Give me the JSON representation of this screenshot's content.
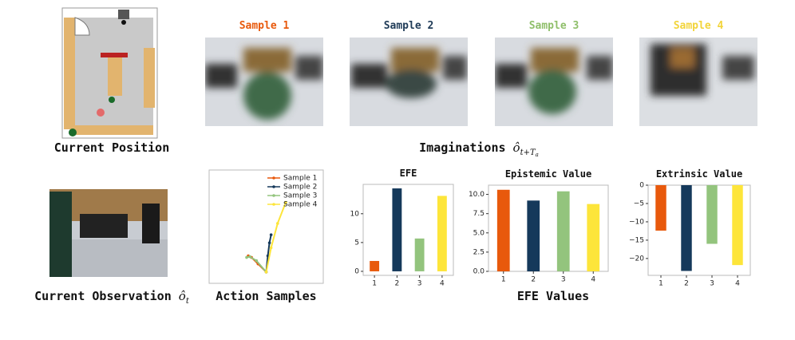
{
  "labels": {
    "current_position": "Current Position",
    "imaginations": "Imaginations",
    "imaginations_math": "ô",
    "imaginations_sub": "t+T",
    "imaginations_subsub": "a",
    "current_observation": "Current Observation",
    "observation_math": "ô",
    "observation_sub": "t",
    "efe_values": "EFE Values"
  },
  "samples": [
    {
      "name": "Sample 1",
      "color": "#e8590c"
    },
    {
      "name": "Sample 2",
      "color": "#1f3b57"
    },
    {
      "name": "Sample 3",
      "color": "#8fbf6a"
    },
    {
      "name": "Sample 4",
      "color": "#f2d43a"
    }
  ],
  "chart_data": [
    {
      "type": "line",
      "title": "Action Samples",
      "legend": "upper right",
      "xlim": [
        -3.5,
        3.5
      ],
      "ylim": [
        -0.7,
        6.3
      ],
      "series": [
        {
          "name": "Sample 1",
          "color": "#e8590c",
          "x": [
            0,
            -0.5,
            -0.9,
            -1.1
          ],
          "values": [
            0,
            0.5,
            0.9,
            1.0
          ]
        },
        {
          "name": "Sample 2",
          "color": "#15395b",
          "x": [
            0,
            0.1,
            0.2,
            0.3
          ],
          "values": [
            0,
            1.0,
            1.8,
            2.3
          ]
        },
        {
          "name": "Sample 3",
          "color": "#93c47d",
          "x": [
            0,
            -0.6,
            -1.0,
            -1.2
          ],
          "values": [
            0,
            0.7,
            0.95,
            0.9
          ]
        },
        {
          "name": "Sample 4",
          "color": "#fde53a",
          "x": [
            0,
            0.3,
            0.7,
            1.2
          ],
          "values": [
            0,
            1.5,
            3.0,
            4.3
          ]
        }
      ]
    },
    {
      "type": "bar",
      "title": "EFE",
      "categories": [
        "1",
        "2",
        "3",
        "4"
      ],
      "values": [
        1.8,
        14.4,
        5.7,
        13.1
      ],
      "colors": [
        "#e8590c",
        "#15395b",
        "#93c47d",
        "#fde53a"
      ],
      "ylim": [
        -0.7,
        15.1
      ],
      "yticks": [
        0,
        5,
        10
      ]
    },
    {
      "type": "bar",
      "title": "Epistemic Value",
      "categories": [
        "1",
        "2",
        "3",
        "4"
      ],
      "values": [
        10.6,
        9.2,
        10.4,
        8.75
      ],
      "colors": [
        "#e8590c",
        "#15395b",
        "#93c47d",
        "#fde53a"
      ],
      "ylim": [
        0,
        11.2
      ],
      "yticks": [
        {
          "value": 0,
          "label": "0.0"
        },
        {
          "value": 2.5,
          "label": "2.5"
        },
        {
          "value": 5,
          "label": "5.0"
        },
        {
          "value": 7.5,
          "label": "7.5"
        },
        {
          "value": 10,
          "label": "10.0"
        }
      ]
    },
    {
      "type": "bar",
      "title": "Extrinsic Value",
      "categories": [
        "1",
        "2",
        "3",
        "4"
      ],
      "values": [
        -12.4,
        -23.4,
        -16,
        -21.8
      ],
      "colors": [
        "#e8590c",
        "#15395b",
        "#93c47d",
        "#fde53a"
      ],
      "ylim": [
        -24.6,
        0
      ],
      "yticks": [
        0,
        {
          "value": -5,
          "label": "−5"
        },
        {
          "value": -10,
          "label": "−10"
        },
        {
          "value": -15,
          "label": "−15"
        },
        {
          "value": -20,
          "label": "−20"
        }
      ]
    }
  ]
}
